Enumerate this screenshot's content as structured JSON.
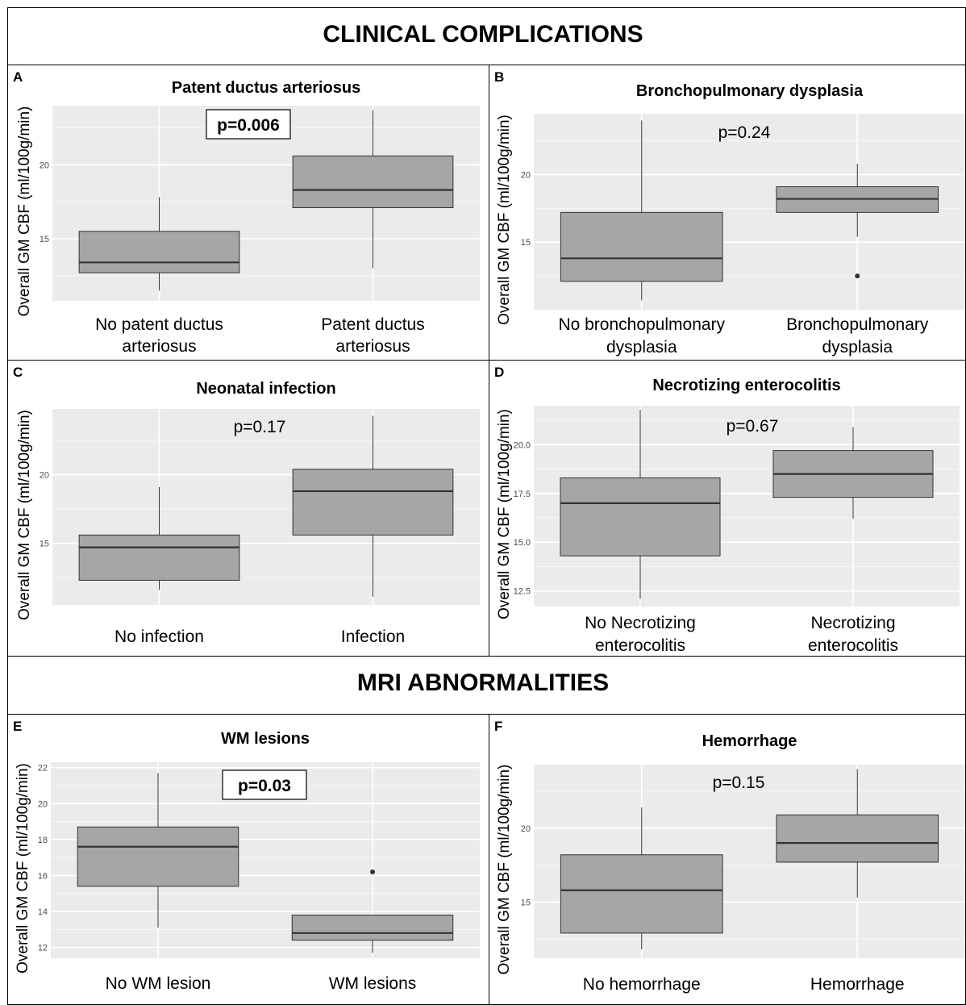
{
  "sections": {
    "clinical_title": "CLINICAL COMPLICATIONS",
    "mri_title": "MRI ABNORMALITIES"
  },
  "chart_data": [
    {
      "panel": "A",
      "type": "box",
      "title": "Patent ductus arteriosus",
      "ylabel": "Overall GM CBF (ml/100g/min)",
      "pvalue": "p=0.006",
      "boxed": true,
      "ylim": [
        10.8,
        24
      ],
      "yticks": [
        15,
        20
      ],
      "ytick_labels": [
        "15",
        "20"
      ],
      "categories": [
        "No patent ductus arteriosus",
        "Patent ductus arteriosus"
      ],
      "category_lines": [
        [
          "No patent ductus",
          "arteriosus"
        ],
        [
          "Patent ductus",
          "arteriosus"
        ]
      ],
      "boxes": [
        {
          "whislo": 11.5,
          "q1": 12.7,
          "med": 13.4,
          "q3": 15.5,
          "whishi": 17.8,
          "outliers": []
        },
        {
          "whislo": 13.0,
          "q1": 17.1,
          "med": 18.3,
          "q3": 20.6,
          "whishi": 23.7,
          "outliers": []
        }
      ]
    },
    {
      "panel": "B",
      "type": "box",
      "title": "Bronchopulmonary dysplasia",
      "ylabel": "Overall GM CBF (ml/100g/min)",
      "pvalue": "p=0.24",
      "boxed": false,
      "ylim": [
        10,
        24.5
      ],
      "yticks": [
        15,
        20
      ],
      "ytick_labels": [
        "15",
        "20"
      ],
      "categories": [
        "No bronchopulmonary dysplasia",
        "Bronchopulmonary dysplasia"
      ],
      "category_lines": [
        [
          "No bronchopulmonary",
          "dysplasia"
        ],
        [
          "Bronchopulmonary",
          "dysplasia"
        ]
      ],
      "boxes": [
        {
          "whislo": 10.7,
          "q1": 12.1,
          "med": 13.8,
          "q3": 17.2,
          "whishi": 24.0,
          "outliers": []
        },
        {
          "whislo": 15.4,
          "q1": 17.2,
          "med": 18.2,
          "q3": 19.1,
          "whishi": 20.8,
          "outliers": [
            12.5
          ]
        }
      ]
    },
    {
      "panel": "C",
      "type": "box",
      "title": "Neonatal infection",
      "ylabel": "Overall GM CBF (ml/100g/min)",
      "pvalue": "p=0.17",
      "boxed": false,
      "ylim": [
        10.5,
        24.8
      ],
      "yticks": [
        15,
        20
      ],
      "ytick_labels": [
        "15",
        "20"
      ],
      "categories": [
        "No infection",
        "Infection"
      ],
      "category_lines": [
        [
          "No infection"
        ],
        [
          "Infection"
        ]
      ],
      "boxes": [
        {
          "whislo": 11.6,
          "q1": 12.3,
          "med": 14.7,
          "q3": 15.6,
          "whishi": 19.1,
          "outliers": []
        },
        {
          "whislo": 11.1,
          "q1": 15.6,
          "med": 18.8,
          "q3": 20.4,
          "whishi": 24.3,
          "outliers": []
        }
      ]
    },
    {
      "panel": "D",
      "type": "box",
      "title": "Necrotizing enterocolitis",
      "ylabel": "Overall GM CBF (ml/100g/min)",
      "pvalue": "p=0.67",
      "boxed": false,
      "ylim": [
        11.7,
        22.0
      ],
      "yticks": [
        12.5,
        15,
        17.5,
        20
      ],
      "ytick_labels": [
        "12.5",
        "15.0",
        "17.5",
        "20.0"
      ],
      "categories": [
        "No Necrotizing enterocolitis",
        "Necrotizing enterocolitis"
      ],
      "category_lines": [
        [
          "No Necrotizing",
          "enterocolitis"
        ],
        [
          "Necrotizing",
          "enterocolitis"
        ]
      ],
      "boxes": [
        {
          "whislo": 12.1,
          "q1": 14.3,
          "med": 17.0,
          "q3": 18.3,
          "whishi": 21.8,
          "outliers": []
        },
        {
          "whislo": 16.2,
          "q1": 17.3,
          "med": 18.5,
          "q3": 19.7,
          "whishi": 20.9,
          "outliers": []
        }
      ]
    },
    {
      "panel": "E",
      "type": "box",
      "title": "WM lesions",
      "ylabel": "Overall GM CBF (ml/100g/min)",
      "pvalue": "p=0.03",
      "boxed": true,
      "ylim": [
        11.4,
        22.3
      ],
      "yticks": [
        12,
        14,
        16,
        18,
        20,
        22
      ],
      "ytick_labels": [
        "12",
        "14",
        "16",
        "18",
        "20",
        "22"
      ],
      "categories": [
        "No WM lesion",
        "WM lesions"
      ],
      "category_lines": [
        [
          "No WM lesion"
        ],
        [
          "WM lesions"
        ]
      ],
      "boxes": [
        {
          "whislo": 13.1,
          "q1": 15.4,
          "med": 17.6,
          "q3": 18.7,
          "whishi": 21.7,
          "outliers": []
        },
        {
          "whislo": 11.7,
          "q1": 12.4,
          "med": 12.8,
          "q3": 13.8,
          "whishi": 13.8,
          "outliers": [
            16.2
          ]
        }
      ]
    },
    {
      "panel": "F",
      "type": "box",
      "title": "Hemorrhage",
      "ylabel": "Overall GM CBF (ml/100g/min)",
      "pvalue": "p=0.15",
      "boxed": false,
      "ylim": [
        11.2,
        24.3
      ],
      "yticks": [
        15,
        20
      ],
      "ytick_labels": [
        "15",
        "20"
      ],
      "categories": [
        "No hemorrhage",
        "Hemorrhage"
      ],
      "category_lines": [
        [
          "No hemorrhage"
        ],
        [
          "Hemorrhage"
        ]
      ],
      "boxes": [
        {
          "whislo": 11.8,
          "q1": 12.9,
          "med": 15.8,
          "q3": 18.2,
          "whishi": 21.4,
          "outliers": []
        },
        {
          "whislo": 15.3,
          "q1": 17.7,
          "med": 19.0,
          "q3": 20.9,
          "whishi": 24.0,
          "outliers": []
        }
      ]
    }
  ]
}
